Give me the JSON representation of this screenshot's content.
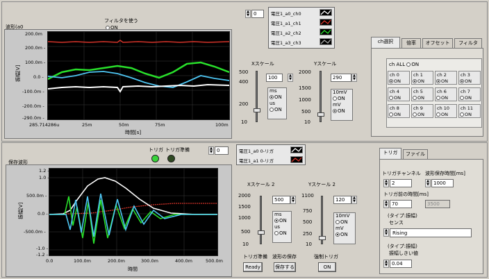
{
  "colors": {
    "green": "#29e02b",
    "white": "#ffffff",
    "cyan": "#4ec5f2",
    "red": "#d8342a",
    "led_on": "#37d33a",
    "led_off": "#2f4a22"
  },
  "top": {
    "filter_label": "フィルタを使う",
    "filter_on": "ON",
    "graph_label": "波形(a0",
    "ylabel": "振幅[V]",
    "xlabel": "時間[s]",
    "yticks": [
      "200.0m",
      "200.0m -",
      "100.0m -",
      "0.0 -",
      "-100.0m -",
      "-200.0m -",
      "-290.0m -"
    ],
    "xticks": [
      "285.714286u",
      "25m",
      "50m",
      "75m",
      "100m"
    ],
    "index_value": "0",
    "legend": [
      {
        "name": "電圧1_a0_ch0"
      },
      {
        "name": "電圧1_a1_ch1"
      },
      {
        "name": "電圧1_a2_ch2"
      },
      {
        "name": "電圧1_a3_ch3"
      }
    ],
    "xscale": {
      "label": "Xスケール",
      "ticks": [
        "500",
        "400",
        "200",
        "10"
      ],
      "value": "100",
      "units": [
        "ms",
        "ON",
        "us",
        "ON"
      ]
    },
    "yscale": {
      "label": "Yスケール",
      "ticks": [
        "2000",
        "1500",
        "1000",
        "500",
        "10"
      ],
      "value": "290",
      "units": [
        "10mV",
        "ON",
        "mV",
        "ON"
      ]
    },
    "tabs": [
      "ch選択",
      "倍率",
      "オフセット",
      "フィルタ"
    ],
    "ch_all": "ch ALL",
    "ch_on": "ON",
    "channels": [
      "ch 0",
      "ch 1",
      "ch 2",
      "ch 3",
      "ch 4",
      "ch 5",
      "ch 6",
      "ch 7",
      "ch 8",
      "ch 9",
      "ch 10",
      "ch 11"
    ]
  },
  "bottom": {
    "graph_label": "保存波形",
    "trigger_label": "トリガ",
    "trigger_ready_label": "トリガ準備",
    "index_value": "0",
    "legend": [
      {
        "name": "電圧1_a0 0-リガ"
      },
      {
        "name": "電圧1_a1 0-リガ"
      }
    ],
    "ylabel": "振幅[V]",
    "xlabel": "時間",
    "yticks": [
      "1.2 -",
      "1.0 -",
      "500.0m -",
      "0.0 -",
      "-500.0m -",
      "-1.0 -",
      "-1.2 -"
    ],
    "xticks": [
      "0.0",
      "100.0m",
      "200.0m",
      "300.0m",
      "400.0m",
      "500.0m"
    ],
    "xscale2": {
      "label": "Xスケール 2",
      "ticks": [
        "2000",
        "1500",
        "1000",
        "500",
        "10"
      ],
      "value": "500",
      "units": [
        "ms",
        "ON",
        "us",
        "ON"
      ]
    },
    "yscale2": {
      "label": "Yスケール 2",
      "ticks": [
        "1100",
        "750",
        "500",
        "250",
        "10"
      ],
      "value": "120",
      "units": [
        "10mV",
        "ON",
        "mV",
        "ON"
      ]
    },
    "btn_ready_label": "トリガ準備",
    "btn_ready": "Ready",
    "btn_save_label": "波形の保存",
    "btn_save": "保存する",
    "btn_force_label": "強制トリガ",
    "btn_force": "ON",
    "tabs": [
      "トリガ",
      "ファイル"
    ],
    "trig_channel_label": "トリガチャンネル",
    "trig_channel": "2",
    "save_time_label": "波形保存時間[ms]",
    "save_time": "1000",
    "pre_trigger_label": "トリガ前の時間[ms]",
    "pre_trigger": "70",
    "pre_trigger_max": "3500",
    "type_label": "(タイプ:振幅)",
    "sense_label": "センス",
    "sense_value": "Rising",
    "type_label2": "(タイプ:振幅)",
    "threshold_label": "振幅しきい値",
    "threshold_value": "0.04"
  }
}
